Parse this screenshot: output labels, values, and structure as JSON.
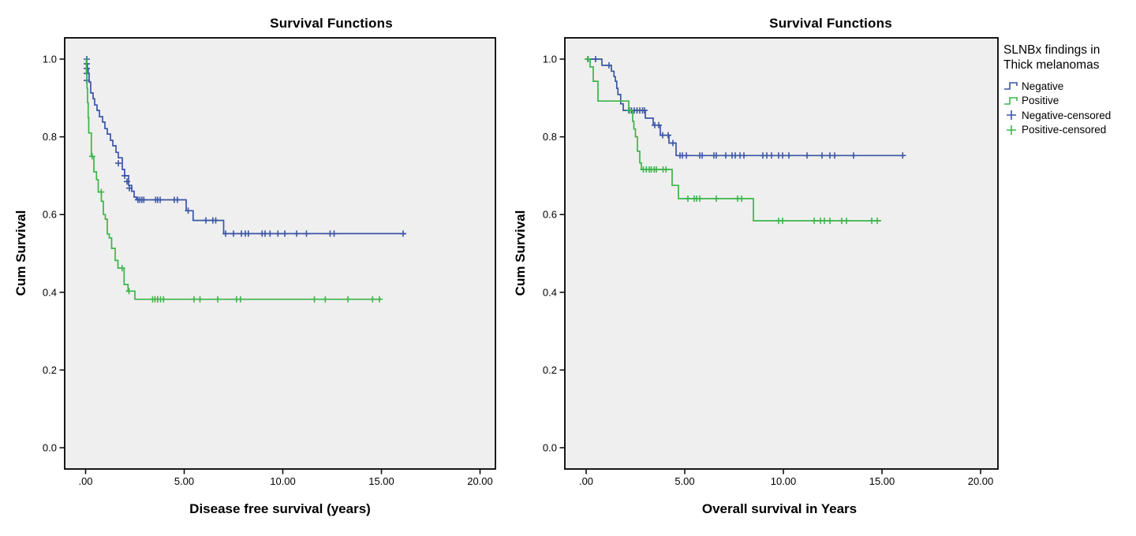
{
  "figure": {
    "background": "#ffffff",
    "plot_background": "#efefef",
    "frame_color": "#000000",
    "accent_blue": "#3a55a5",
    "accent_green": "#3bb54a"
  },
  "legend": {
    "title_line1": "SLNBx findings in",
    "title_line2": "Thick melanomas",
    "items": [
      {
        "label": "Negative",
        "type": "line",
        "color": "#3a55a5"
      },
      {
        "label": "Positive",
        "type": "line",
        "color": "#3bb54a"
      },
      {
        "label": "Negative-censored",
        "type": "plus",
        "color": "#3a55a5"
      },
      {
        "label": "Positive-censored",
        "type": "plus",
        "color": "#3bb54a"
      }
    ]
  },
  "chart_data": [
    {
      "type": "line",
      "subtype": "kaplan-meier-step",
      "title": "Survival Functions",
      "xlabel": "Disease free survival (years)",
      "ylabel": "Cum Survival",
      "xlim": [
        -1.1,
        20.9
      ],
      "ylim": [
        -0.06,
        1.055
      ],
      "grid": false,
      "legend_position": "right-of-second-panel",
      "xticks": [
        {
          "value": 0,
          "label": ".00"
        },
        {
          "value": 5,
          "label": "5.00"
        },
        {
          "value": 10,
          "label": "10.00"
        },
        {
          "value": 15,
          "label": "15.00"
        },
        {
          "value": 20,
          "label": "20.00"
        }
      ],
      "yticks": [
        {
          "value": 1.0,
          "label": "1.0"
        },
        {
          "value": 0.8,
          "label": "0.8"
        },
        {
          "value": 0.6,
          "label": "0.6"
        },
        {
          "value": 0.4,
          "label": "0.4"
        },
        {
          "value": 0.2,
          "label": "0.2"
        },
        {
          "value": 0.0,
          "label": "0.0"
        }
      ],
      "series": [
        {
          "name": "Negative",
          "color": "#3a55a5",
          "end": 16.2,
          "steps": [
            [
              0,
              1.0
            ],
            [
              0.05,
              0.988
            ],
            [
              0.09,
              0.976
            ],
            [
              0.13,
              0.963
            ],
            [
              0.18,
              0.941
            ],
            [
              0.26,
              0.913
            ],
            [
              0.38,
              0.898
            ],
            [
              0.46,
              0.882
            ],
            [
              0.58,
              0.868
            ],
            [
              0.7,
              0.852
            ],
            [
              0.86,
              0.838
            ],
            [
              0.98,
              0.821
            ],
            [
              1.1,
              0.807
            ],
            [
              1.26,
              0.791
            ],
            [
              1.38,
              0.777
            ],
            [
              1.54,
              0.76
            ],
            [
              1.66,
              0.746
            ],
            [
              1.86,
              0.716
            ],
            [
              1.98,
              0.7
            ],
            [
              2.18,
              0.675
            ],
            [
              2.34,
              0.66
            ],
            [
              2.46,
              0.645
            ],
            [
              2.58,
              0.638
            ],
            [
              5.1,
              0.61
            ],
            [
              5.45,
              0.585
            ],
            [
              7.0,
              0.551
            ]
          ],
          "censored": [
            [
              0.06,
              1.0
            ],
            [
              0.06,
              0.988
            ],
            [
              0.06,
              0.976
            ],
            [
              0.06,
              0.963
            ],
            [
              0.06,
              0.945
            ],
            [
              1.66,
              0.732
            ],
            [
              1.98,
              0.7
            ],
            [
              2.1,
              0.685
            ],
            [
              2.22,
              0.668
            ],
            [
              2.65,
              0.638
            ],
            [
              2.75,
              0.638
            ],
            [
              2.85,
              0.638
            ],
            [
              2.95,
              0.638
            ],
            [
              3.55,
              0.638
            ],
            [
              3.65,
              0.638
            ],
            [
              3.78,
              0.638
            ],
            [
              4.5,
              0.638
            ],
            [
              4.65,
              0.638
            ],
            [
              5.2,
              0.61
            ],
            [
              6.1,
              0.585
            ],
            [
              6.45,
              0.585
            ],
            [
              6.6,
              0.585
            ],
            [
              7.1,
              0.551
            ],
            [
              7.5,
              0.551
            ],
            [
              7.9,
              0.551
            ],
            [
              8.1,
              0.551
            ],
            [
              8.25,
              0.551
            ],
            [
              8.95,
              0.551
            ],
            [
              9.1,
              0.551
            ],
            [
              9.35,
              0.551
            ],
            [
              9.75,
              0.551
            ],
            [
              10.1,
              0.551
            ],
            [
              10.7,
              0.551
            ],
            [
              11.2,
              0.551
            ],
            [
              12.4,
              0.551
            ],
            [
              12.6,
              0.551
            ],
            [
              16.1,
              0.551
            ]
          ]
        },
        {
          "name": "Positive",
          "color": "#3bb54a",
          "end": 15.05,
          "steps": [
            [
              0,
              1.0
            ],
            [
              0.04,
              0.962
            ],
            [
              0.07,
              0.925
            ],
            [
              0.1,
              0.888
            ],
            [
              0.13,
              0.849
            ],
            [
              0.16,
              0.81
            ],
            [
              0.29,
              0.75
            ],
            [
              0.42,
              0.71
            ],
            [
              0.55,
              0.69
            ],
            [
              0.64,
              0.658
            ],
            [
              0.8,
              0.634
            ],
            [
              0.9,
              0.6
            ],
            [
              1.0,
              0.588
            ],
            [
              1.1,
              0.55
            ],
            [
              1.2,
              0.54
            ],
            [
              1.32,
              0.513
            ],
            [
              1.5,
              0.482
            ],
            [
              1.64,
              0.462
            ],
            [
              1.95,
              0.42
            ],
            [
              2.15,
              0.403
            ],
            [
              2.5,
              0.382
            ]
          ],
          "censored": [
            [
              0.33,
              0.75
            ],
            [
              0.79,
              0.658
            ],
            [
              1.85,
              0.462
            ],
            [
              2.2,
              0.403
            ],
            [
              3.4,
              0.382
            ],
            [
              3.52,
              0.382
            ],
            [
              3.65,
              0.382
            ],
            [
              3.8,
              0.382
            ],
            [
              3.95,
              0.382
            ],
            [
              5.5,
              0.382
            ],
            [
              5.8,
              0.382
            ],
            [
              6.7,
              0.382
            ],
            [
              7.65,
              0.382
            ],
            [
              7.85,
              0.382
            ],
            [
              11.6,
              0.382
            ],
            [
              12.15,
              0.382
            ],
            [
              13.3,
              0.382
            ],
            [
              14.55,
              0.382
            ],
            [
              14.9,
              0.382
            ]
          ]
        }
      ]
    },
    {
      "type": "line",
      "subtype": "kaplan-meier-step",
      "title": "Survival Functions",
      "xlabel": "Overall survival in Years",
      "ylabel": "Cum Survival",
      "xlim": [
        -1.1,
        20.9
      ],
      "ylim": [
        -0.06,
        1.055
      ],
      "grid": false,
      "xticks": [
        {
          "value": 0,
          "label": ".00"
        },
        {
          "value": 5,
          "label": "5.00"
        },
        {
          "value": 10,
          "label": "10.00"
        },
        {
          "value": 15,
          "label": "15.00"
        },
        {
          "value": 20,
          "label": "20.00"
        }
      ],
      "yticks": [
        {
          "value": 1.0,
          "label": "1.0"
        },
        {
          "value": 0.8,
          "label": "0.8"
        },
        {
          "value": 0.6,
          "label": "0.6"
        },
        {
          "value": 0.4,
          "label": "0.4"
        },
        {
          "value": 0.2,
          "label": "0.2"
        },
        {
          "value": 0.0,
          "label": "0.0"
        }
      ],
      "series": [
        {
          "name": "Negative",
          "color": "#3a55a5",
          "end": 16.08,
          "steps": [
            [
              0,
              1.0
            ],
            [
              0.8,
              0.984
            ],
            [
              1.28,
              0.969
            ],
            [
              1.41,
              0.955
            ],
            [
              1.48,
              0.943
            ],
            [
              1.55,
              0.925
            ],
            [
              1.61,
              0.909
            ],
            [
              1.75,
              0.885
            ],
            [
              1.88,
              0.868
            ],
            [
              3.0,
              0.848
            ],
            [
              3.4,
              0.83
            ],
            [
              3.76,
              0.804
            ],
            [
              4.2,
              0.784
            ],
            [
              4.56,
              0.752
            ]
          ],
          "censored": [
            [
              0.1,
              1.0
            ],
            [
              0.48,
              1.0
            ],
            [
              1.16,
              0.984
            ],
            [
              2.16,
              0.868
            ],
            [
              2.3,
              0.868
            ],
            [
              2.44,
              0.868
            ],
            [
              2.58,
              0.868
            ],
            [
              2.72,
              0.868
            ],
            [
              2.86,
              0.868
            ],
            [
              2.96,
              0.868
            ],
            [
              3.48,
              0.83
            ],
            [
              3.68,
              0.83
            ],
            [
              3.88,
              0.804
            ],
            [
              4.16,
              0.804
            ],
            [
              4.4,
              0.784
            ],
            [
              4.76,
              0.752
            ],
            [
              4.88,
              0.752
            ],
            [
              5.08,
              0.752
            ],
            [
              5.76,
              0.752
            ],
            [
              5.88,
              0.752
            ],
            [
              6.48,
              0.752
            ],
            [
              6.6,
              0.752
            ],
            [
              7.08,
              0.752
            ],
            [
              7.4,
              0.752
            ],
            [
              7.56,
              0.752
            ],
            [
              7.8,
              0.752
            ],
            [
              8.0,
              0.752
            ],
            [
              8.96,
              0.752
            ],
            [
              9.16,
              0.752
            ],
            [
              9.4,
              0.752
            ],
            [
              9.76,
              0.752
            ],
            [
              9.96,
              0.752
            ],
            [
              10.28,
              0.752
            ],
            [
              11.2,
              0.752
            ],
            [
              11.96,
              0.752
            ],
            [
              12.36,
              0.752
            ],
            [
              12.6,
              0.752
            ],
            [
              13.56,
              0.752
            ],
            [
              16.05,
              0.752
            ]
          ]
        },
        {
          "name": "Positive",
          "color": "#3bb54a",
          "end": 14.96,
          "steps": [
            [
              0,
              1.0
            ],
            [
              0.2,
              0.98
            ],
            [
              0.36,
              0.943
            ],
            [
              0.6,
              0.892
            ],
            [
              2.16,
              0.868
            ],
            [
              2.36,
              0.84
            ],
            [
              2.42,
              0.82
            ],
            [
              2.5,
              0.8
            ],
            [
              2.6,
              0.763
            ],
            [
              2.72,
              0.733
            ],
            [
              2.8,
              0.716
            ],
            [
              4.36,
              0.675
            ],
            [
              4.68,
              0.641
            ],
            [
              8.48,
              0.584
            ]
          ],
          "censored": [
            [
              0.08,
              1.0
            ],
            [
              2.2,
              0.868
            ],
            [
              2.9,
              0.716
            ],
            [
              3.05,
              0.716
            ],
            [
              3.2,
              0.716
            ],
            [
              3.3,
              0.716
            ],
            [
              3.45,
              0.716
            ],
            [
              3.56,
              0.716
            ],
            [
              3.9,
              0.716
            ],
            [
              4.05,
              0.716
            ],
            [
              5.16,
              0.641
            ],
            [
              5.48,
              0.641
            ],
            [
              5.6,
              0.641
            ],
            [
              5.76,
              0.641
            ],
            [
              6.6,
              0.641
            ],
            [
              7.68,
              0.641
            ],
            [
              7.88,
              0.641
            ],
            [
              9.76,
              0.584
            ],
            [
              9.96,
              0.584
            ],
            [
              11.56,
              0.584
            ],
            [
              11.88,
              0.584
            ],
            [
              12.08,
              0.584
            ],
            [
              12.36,
              0.584
            ],
            [
              12.96,
              0.584
            ],
            [
              13.2,
              0.584
            ],
            [
              14.48,
              0.584
            ],
            [
              14.76,
              0.584
            ]
          ]
        }
      ]
    }
  ]
}
